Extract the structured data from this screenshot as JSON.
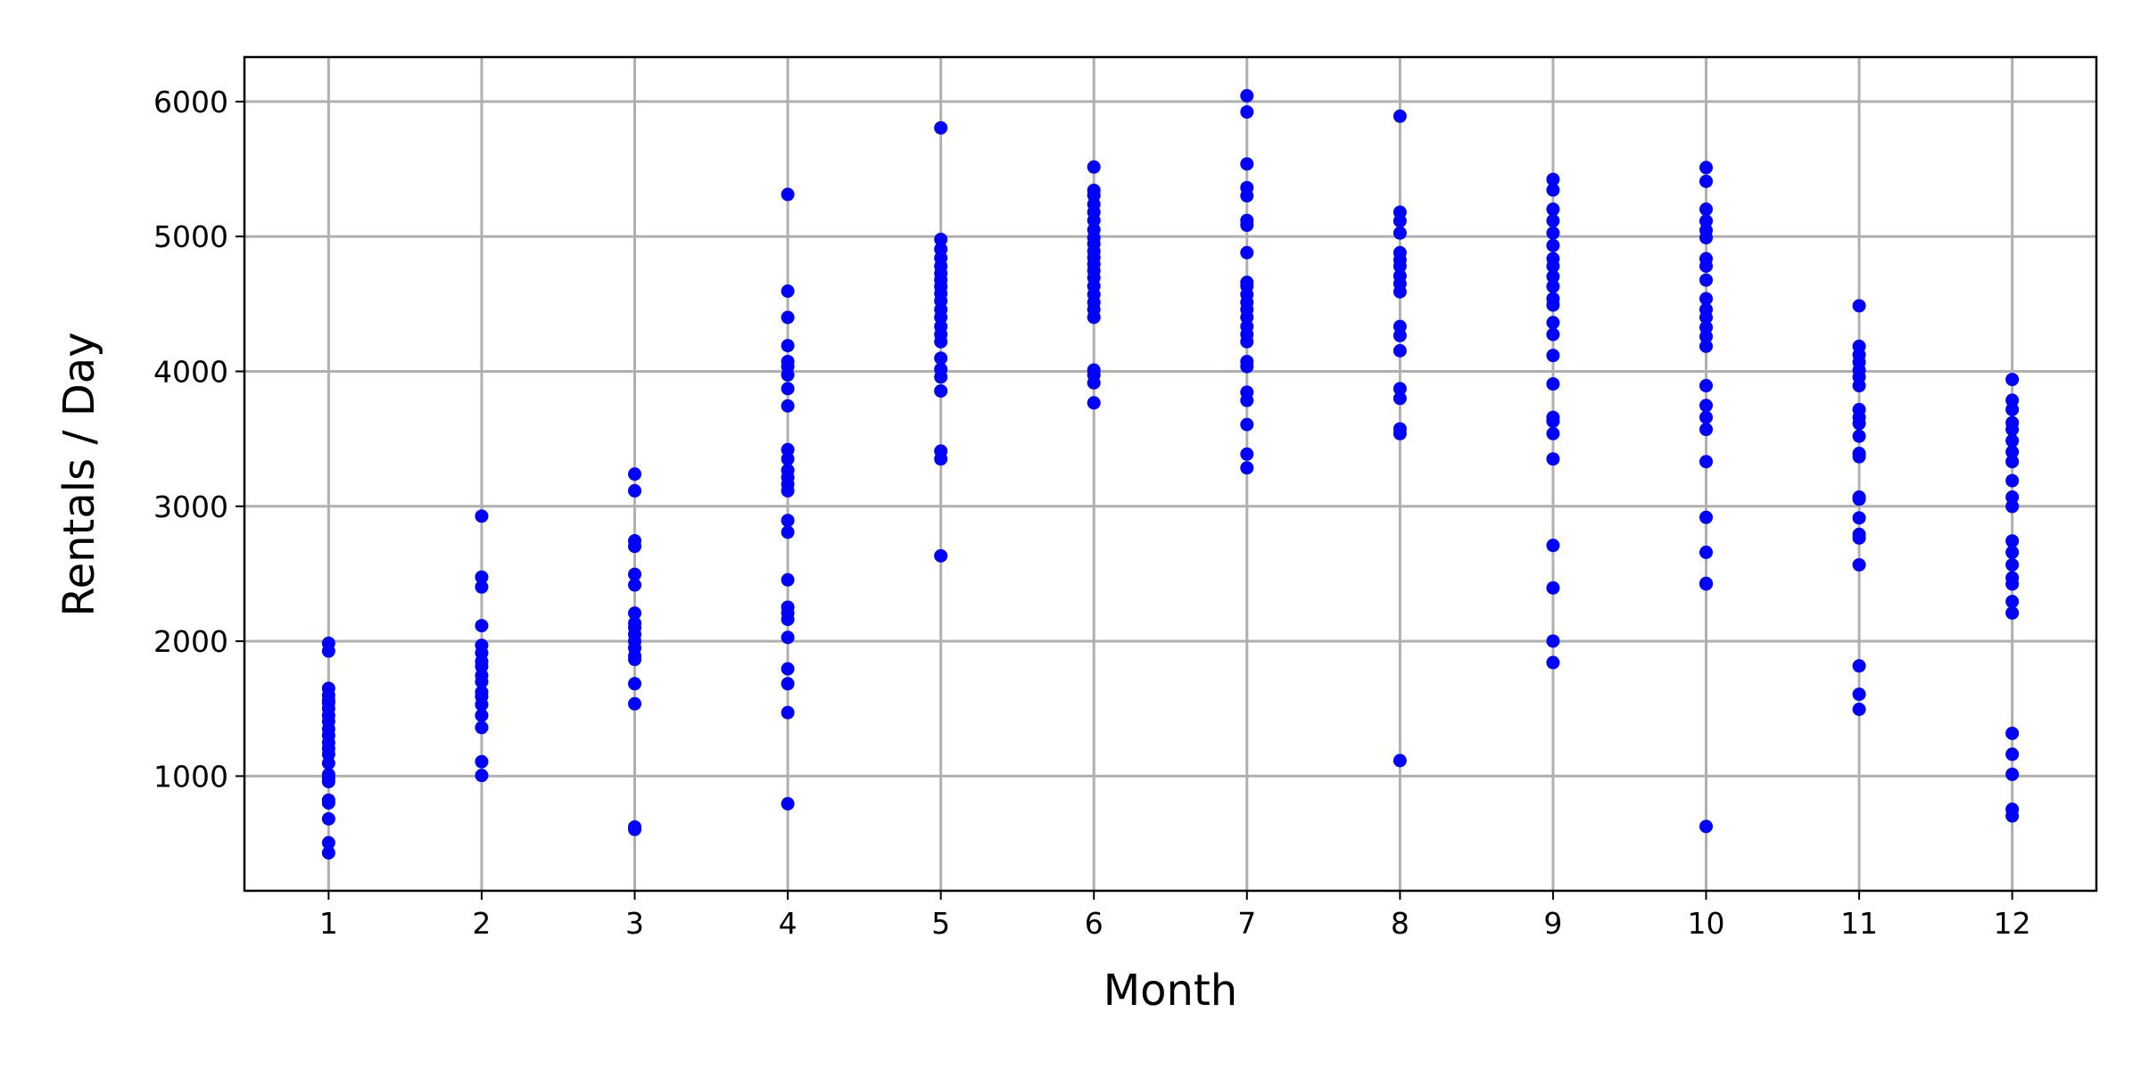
{
  "chart_data": {
    "type": "scatter",
    "title": "",
    "xlabel": "Month",
    "ylabel": "Rentals / Day",
    "xlim": [
      0.45,
      12.55
    ],
    "ylim": [
      150,
      6330
    ],
    "xticks": [
      1,
      2,
      3,
      4,
      5,
      6,
      7,
      8,
      9,
      10,
      11,
      12
    ],
    "yticks": [
      1000,
      2000,
      3000,
      4000,
      5000,
      6000
    ],
    "grid": true,
    "marker_color": "#0000ff",
    "series": [
      {
        "points": [
          [
            1,
            431
          ],
          [
            1,
            506
          ],
          [
            1,
            683
          ],
          [
            1,
            801
          ],
          [
            1,
            822
          ],
          [
            1,
            959
          ],
          [
            1,
            985
          ],
          [
            1,
            1011
          ],
          [
            1,
            1096
          ],
          [
            1,
            1162
          ],
          [
            1,
            1204
          ],
          [
            1,
            1248
          ],
          [
            1,
            1301
          ],
          [
            1,
            1349
          ],
          [
            1,
            1406
          ],
          [
            1,
            1450
          ],
          [
            1,
            1501
          ],
          [
            1,
            1543
          ],
          [
            1,
            1562
          ],
          [
            1,
            1600
          ],
          [
            1,
            1650
          ],
          [
            1,
            1927
          ],
          [
            1,
            1985
          ],
          [
            2,
            1005
          ],
          [
            2,
            1107
          ],
          [
            2,
            1360
          ],
          [
            2,
            1450
          ],
          [
            2,
            1530
          ],
          [
            2,
            1589
          ],
          [
            2,
            1623
          ],
          [
            2,
            1700
          ],
          [
            2,
            1746
          ],
          [
            2,
            1813
          ],
          [
            2,
            1850
          ],
          [
            2,
            1913
          ],
          [
            2,
            1969
          ],
          [
            2,
            2115
          ],
          [
            2,
            2402
          ],
          [
            2,
            2475
          ],
          [
            2,
            2927
          ],
          [
            3,
            605
          ],
          [
            3,
            623
          ],
          [
            3,
            1536
          ],
          [
            3,
            1685
          ],
          [
            3,
            1865
          ],
          [
            3,
            1891
          ],
          [
            3,
            1950
          ],
          [
            3,
            2000
          ],
          [
            3,
            2051
          ],
          [
            3,
            2100
          ],
          [
            3,
            2133
          ],
          [
            3,
            2208
          ],
          [
            3,
            2417
          ],
          [
            3,
            2496
          ],
          [
            3,
            2703
          ],
          [
            3,
            2744
          ],
          [
            3,
            3115
          ],
          [
            3,
            3239
          ],
          [
            4,
            795
          ],
          [
            4,
            1471
          ],
          [
            4,
            1685
          ],
          [
            4,
            1795
          ],
          [
            4,
            2028
          ],
          [
            4,
            2162
          ],
          [
            4,
            2209
          ],
          [
            4,
            2252
          ],
          [
            4,
            2455
          ],
          [
            4,
            2808
          ],
          [
            4,
            2895
          ],
          [
            4,
            3115
          ],
          [
            4,
            3163
          ],
          [
            4,
            3214
          ],
          [
            4,
            3267
          ],
          [
            4,
            3351
          ],
          [
            4,
            3420
          ],
          [
            4,
            3744
          ],
          [
            4,
            3872
          ],
          [
            4,
            3974
          ],
          [
            4,
            4036
          ],
          [
            4,
            4073
          ],
          [
            4,
            4191
          ],
          [
            4,
            4400
          ],
          [
            4,
            4595
          ],
          [
            4,
            5312
          ],
          [
            5,
            2633
          ],
          [
            5,
            3351
          ],
          [
            5,
            3409
          ],
          [
            5,
            3855
          ],
          [
            5,
            3958
          ],
          [
            5,
            4016
          ],
          [
            5,
            4098
          ],
          [
            5,
            4220
          ],
          [
            5,
            4274
          ],
          [
            5,
            4333
          ],
          [
            5,
            4401
          ],
          [
            5,
            4458
          ],
          [
            5,
            4523
          ],
          [
            5,
            4577
          ],
          [
            5,
            4629
          ],
          [
            5,
            4678
          ],
          [
            5,
            4727
          ],
          [
            5,
            4780
          ],
          [
            5,
            4840
          ],
          [
            5,
            4906
          ],
          [
            5,
            4978
          ],
          [
            5,
            5805
          ],
          [
            6,
            3767
          ],
          [
            6,
            3915
          ],
          [
            6,
            3974
          ],
          [
            6,
            4010
          ],
          [
            6,
            4401
          ],
          [
            6,
            4459
          ],
          [
            6,
            4511
          ],
          [
            6,
            4570
          ],
          [
            6,
            4632
          ],
          [
            6,
            4694
          ],
          [
            6,
            4747
          ],
          [
            6,
            4795
          ],
          [
            6,
            4844
          ],
          [
            6,
            4891
          ],
          [
            6,
            4946
          ],
          [
            6,
            4990
          ],
          [
            6,
            5050
          ],
          [
            6,
            5119
          ],
          [
            6,
            5180
          ],
          [
            6,
            5239
          ],
          [
            6,
            5305
          ],
          [
            6,
            5342
          ],
          [
            6,
            5515
          ],
          [
            7,
            3285
          ],
          [
            7,
            3387
          ],
          [
            7,
            3606
          ],
          [
            7,
            3785
          ],
          [
            7,
            3846
          ],
          [
            7,
            4036
          ],
          [
            7,
            4073
          ],
          [
            7,
            4220
          ],
          [
            7,
            4274
          ],
          [
            7,
            4333
          ],
          [
            7,
            4401
          ],
          [
            7,
            4459
          ],
          [
            7,
            4511
          ],
          [
            7,
            4570
          ],
          [
            7,
            4632
          ],
          [
            7,
            4660
          ],
          [
            7,
            4880
          ],
          [
            7,
            5084
          ],
          [
            7,
            5119
          ],
          [
            7,
            5302
          ],
          [
            7,
            5362
          ],
          [
            7,
            5538
          ],
          [
            7,
            5923
          ],
          [
            7,
            6043
          ],
          [
            8,
            1115
          ],
          [
            8,
            3539
          ],
          [
            8,
            3574
          ],
          [
            8,
            3800
          ],
          [
            8,
            3872
          ],
          [
            8,
            4153
          ],
          [
            8,
            4266
          ],
          [
            8,
            4333
          ],
          [
            8,
            4590
          ],
          [
            8,
            4650
          ],
          [
            8,
            4708
          ],
          [
            8,
            4780
          ],
          [
            8,
            4826
          ],
          [
            8,
            4880
          ],
          [
            8,
            5026
          ],
          [
            8,
            5115
          ],
          [
            8,
            5180
          ],
          [
            8,
            5892
          ],
          [
            9,
            1842
          ],
          [
            9,
            2001
          ],
          [
            9,
            2395
          ],
          [
            9,
            2710
          ],
          [
            9,
            3351
          ],
          [
            9,
            3539
          ],
          [
            9,
            3631
          ],
          [
            9,
            3659
          ],
          [
            9,
            3907
          ],
          [
            9,
            4118
          ],
          [
            9,
            4274
          ],
          [
            9,
            4362
          ],
          [
            9,
            4492
          ],
          [
            9,
            4539
          ],
          [
            9,
            4630
          ],
          [
            9,
            4703
          ],
          [
            9,
            4780
          ],
          [
            9,
            4835
          ],
          [
            9,
            4933
          ],
          [
            9,
            5026
          ],
          [
            9,
            5117
          ],
          [
            9,
            5202
          ],
          [
            9,
            5345
          ],
          [
            9,
            5423
          ],
          [
            10,
            627
          ],
          [
            10,
            2424
          ],
          [
            10,
            2429
          ],
          [
            10,
            2659
          ],
          [
            10,
            2918
          ],
          [
            10,
            3331
          ],
          [
            10,
            3570
          ],
          [
            10,
            3659
          ],
          [
            10,
            3747
          ],
          [
            10,
            3894
          ],
          [
            10,
            4186
          ],
          [
            10,
            4258
          ],
          [
            10,
            4326
          ],
          [
            10,
            4400
          ],
          [
            10,
            4459
          ],
          [
            10,
            4539
          ],
          [
            10,
            4677
          ],
          [
            10,
            4780
          ],
          [
            10,
            4835
          ],
          [
            10,
            4991
          ],
          [
            10,
            5046
          ],
          [
            10,
            5115
          ],
          [
            10,
            5202
          ],
          [
            10,
            5409
          ],
          [
            10,
            5511
          ],
          [
            11,
            1495
          ],
          [
            11,
            1607
          ],
          [
            11,
            1817
          ],
          [
            11,
            2566
          ],
          [
            11,
            2765
          ],
          [
            11,
            2792
          ],
          [
            11,
            2914
          ],
          [
            11,
            3053
          ],
          [
            11,
            3068
          ],
          [
            11,
            3368
          ],
          [
            11,
            3392
          ],
          [
            11,
            3520
          ],
          [
            11,
            3614
          ],
          [
            11,
            3659
          ],
          [
            11,
            3717
          ],
          [
            11,
            3894
          ],
          [
            11,
            3959
          ],
          [
            11,
            4010
          ],
          [
            11,
            4068
          ],
          [
            11,
            4123
          ],
          [
            11,
            4186
          ],
          [
            11,
            4486
          ],
          [
            12,
            705
          ],
          [
            12,
            754
          ],
          [
            12,
            1013
          ],
          [
            12,
            1162
          ],
          [
            12,
            1317
          ],
          [
            12,
            2209
          ],
          [
            12,
            2294
          ],
          [
            12,
            2424
          ],
          [
            12,
            2470
          ],
          [
            12,
            2566
          ],
          [
            12,
            2659
          ],
          [
            12,
            2743
          ],
          [
            12,
            2999
          ],
          [
            12,
            3068
          ],
          [
            12,
            3190
          ],
          [
            12,
            3331
          ],
          [
            12,
            3403
          ],
          [
            12,
            3486
          ],
          [
            12,
            3570
          ],
          [
            12,
            3620
          ],
          [
            12,
            3717
          ],
          [
            12,
            3786
          ],
          [
            12,
            3940
          ]
        ]
      }
    ]
  }
}
